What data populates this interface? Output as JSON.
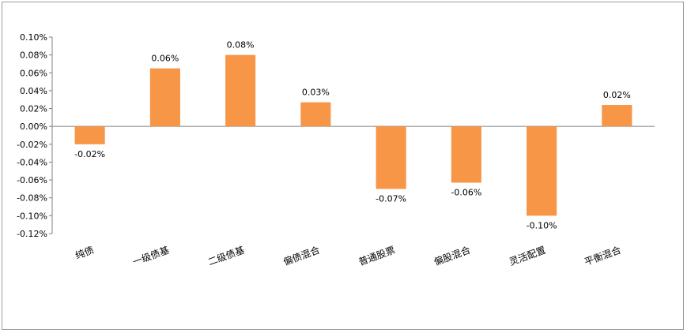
{
  "chart_data": {
    "type": "bar",
    "categories": [
      "纯债",
      "一级债基",
      "二级债基",
      "偏债混合",
      "普通股票",
      "偏股混合",
      "灵活配置",
      "平衡混合"
    ],
    "values": [
      -0.0002,
      0.00065,
      0.0008,
      0.00027,
      -0.0007,
      -0.00063,
      -0.001,
      0.00024
    ],
    "data_labels": [
      "-0.02%",
      "0.06%",
      "0.08%",
      "0.03%",
      "-0.07%",
      "-0.06%",
      "-0.10%",
      "0.02%"
    ],
    "ylim": [
      -0.0012,
      0.001
    ],
    "yticks": [
      "0.10%",
      "0.08%",
      "0.06%",
      "0.04%",
      "0.02%",
      "0.00%",
      "-0.02%",
      "-0.04%",
      "-0.06%",
      "-0.08%",
      "-0.10%",
      "-0.12%"
    ],
    "ytick_values": [
      0.001,
      0.0008,
      0.0006,
      0.0004,
      0.0002,
      0,
      -0.0002,
      -0.0004,
      -0.0006,
      -0.0008,
      -0.001,
      -0.0012
    ],
    "bar_color": "#F79646",
    "grid": false,
    "legend": "none"
  }
}
